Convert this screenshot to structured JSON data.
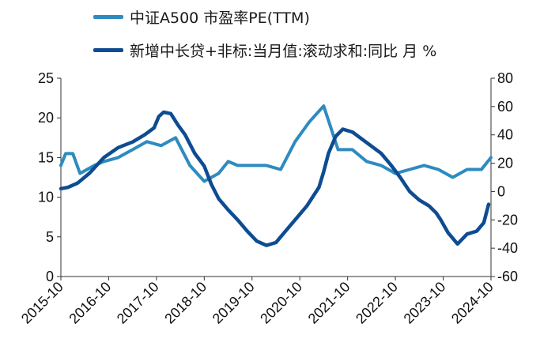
{
  "chart_data": {
    "type": "line",
    "title": "",
    "xlabel": "",
    "ylabel": "",
    "x_ticks": [
      "2015-10",
      "2016-10",
      "2017-10",
      "2018-10",
      "2019-10",
      "2020-10",
      "2021-10",
      "2022-10",
      "2023-10",
      "2024-10"
    ],
    "y_left_ticks": [
      "0",
      "5",
      "10",
      "15",
      "20",
      "25"
    ],
    "y_right_ticks": [
      "-60",
      "-40",
      "-20",
      "0",
      "20",
      "40",
      "60",
      "80"
    ],
    "ylim_left": [
      0,
      25
    ],
    "ylim_right": [
      -60,
      80
    ],
    "legend_position": "top",
    "series": [
      {
        "name": "中证A500 市盈率PE(TTM)",
        "axis": "left",
        "color": "#2E8BC0",
        "x": [
          0,
          0.1,
          0.25,
          0.4,
          0.55,
          0.7,
          0.9,
          1.2,
          1.5,
          1.8,
          2.1,
          2.4,
          2.7,
          3.0,
          3.3,
          3.5,
          3.7,
          4.0,
          4.3,
          4.6,
          4.9,
          5.2,
          5.5,
          5.8,
          6.1,
          6.4,
          6.7,
          7.0,
          7.3,
          7.6,
          7.9,
          8.2,
          8.5,
          8.8,
          9.0
        ],
        "values": [
          14,
          15.5,
          15.5,
          13,
          13.5,
          14,
          14.5,
          15,
          16,
          17,
          16.5,
          17.5,
          14,
          12,
          13,
          14.5,
          14,
          14,
          14,
          13.5,
          17,
          19.5,
          21.5,
          16,
          16,
          14.5,
          14,
          13,
          13.5,
          14,
          13.5,
          12.5,
          13.5,
          13.5,
          15
        ]
      },
      {
        "name": "新增中长贷+非标:当月值:滚动求和:同比 月 %",
        "axis": "right",
        "color": "#0E4C92",
        "x": [
          0,
          0.15,
          0.35,
          0.6,
          0.9,
          1.2,
          1.5,
          1.65,
          1.75,
          1.95,
          2.05,
          2.15,
          2.3,
          2.45,
          2.6,
          2.8,
          3.0,
          3.15,
          3.3,
          3.5,
          3.7,
          3.9,
          4.1,
          4.3,
          4.5,
          4.7,
          4.9,
          5.15,
          5.4,
          5.5,
          5.6,
          5.75,
          5.9,
          6.1,
          6.3,
          6.5,
          6.7,
          6.9,
          7.1,
          7.3,
          7.5,
          7.7,
          7.85,
          7.95,
          8.1,
          8.3,
          8.5,
          8.7,
          8.85,
          8.95
        ],
        "values": [
          2,
          3,
          6,
          13,
          24,
          31,
          35,
          38,
          40,
          45,
          53,
          56,
          55,
          47,
          40,
          27,
          18,
          5,
          -5,
          -13,
          -20,
          -28,
          -35,
          -38,
          -36,
          -28,
          -20,
          -10,
          3,
          14,
          27,
          39,
          44,
          42,
          37,
          32,
          27,
          19,
          10,
          0,
          -6,
          -10,
          -15,
          -20,
          -29,
          -37,
          -30,
          -28,
          -22,
          -9
        ]
      }
    ]
  },
  "legend": {
    "series1": "中证A500 市盈率PE(TTM)",
    "series2": "新增中长贷+非标:当月值:滚动求和:同比 月 %"
  }
}
